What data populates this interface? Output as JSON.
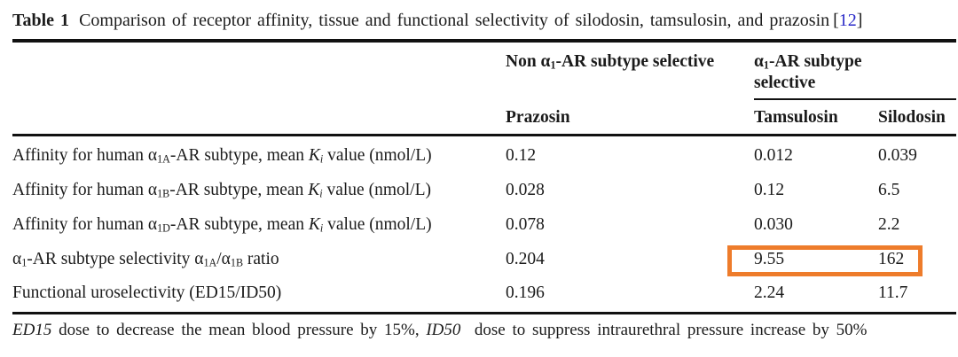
{
  "colors": {
    "text": "#1b1b1b",
    "citation_blue": "#2a2ac8",
    "highlight_orange": "#ee7c2b"
  },
  "caption": {
    "table_label": "Table 1",
    "text": "Comparison of receptor affinity, tissue and functional selectivity of silodosin, tamsulosin, and prazosin",
    "citation_open": "[",
    "citation_number": "12",
    "citation_close": "]"
  },
  "header": {
    "group_non_selective": [
      {
        "t": "Non α"
      },
      {
        "t": "1",
        "sub": true
      },
      {
        "t": "-AR subtype selective"
      }
    ],
    "group_selective_line1": [
      {
        "t": "α"
      },
      {
        "t": "1",
        "sub": true
      },
      {
        "t": "-AR subtype"
      }
    ],
    "group_selective_line2": [
      {
        "t": "selective"
      }
    ],
    "col_prazosin": "Prazosin",
    "col_tamsulosin": "Tamsulosin",
    "col_silodosin": "Silodosin"
  },
  "rows": [
    {
      "label": [
        {
          "t": "Affinity for human α"
        },
        {
          "t": "1A",
          "sub": true
        },
        {
          "t": "-AR subtype, mean "
        },
        {
          "t": "K",
          "i": true
        },
        {
          "t": "i",
          "sub": true,
          "i": true
        },
        {
          "t": " value (nmol/L)"
        }
      ],
      "prazosin": "0.12",
      "tamsulosin": "0.012",
      "silodosin": "0.039"
    },
    {
      "label": [
        {
          "t": "Affinity for human α"
        },
        {
          "t": "1B",
          "sub": true
        },
        {
          "t": "-AR subtype, mean "
        },
        {
          "t": "K",
          "i": true
        },
        {
          "t": "i",
          "sub": true,
          "i": true
        },
        {
          "t": " value (nmol/L)"
        }
      ],
      "prazosin": "0.028",
      "tamsulosin": "0.12",
      "silodosin": "6.5"
    },
    {
      "label": [
        {
          "t": "Affinity for human α"
        },
        {
          "t": "1D",
          "sub": true
        },
        {
          "t": "-AR subtype, mean "
        },
        {
          "t": "K",
          "i": true
        },
        {
          "t": "i",
          "sub": true,
          "i": true
        },
        {
          "t": " value (nmol/L)"
        }
      ],
      "prazosin": "0.078",
      "tamsulosin": "0.030",
      "silodosin": "2.2"
    },
    {
      "label": [
        {
          "t": "α"
        },
        {
          "t": "1",
          "sub": true
        },
        {
          "t": "-AR subtype selectivity α"
        },
        {
          "t": "1A",
          "sub": true
        },
        {
          "t": "/α"
        },
        {
          "t": "1B",
          "sub": true
        },
        {
          "t": " ratio"
        }
      ],
      "prazosin": "0.204",
      "tamsulosin": "9.55",
      "silodosin": "162"
    },
    {
      "label": [
        {
          "t": "Functional uroselectivity (ED15/ID50)"
        }
      ],
      "prazosin": "0.196",
      "tamsulosin": "2.24",
      "silodosin": "11.7"
    }
  ],
  "highlight": {
    "highlighted_values": [
      "9.55",
      "162"
    ],
    "row": "α1-AR subtype selectivity α1A/α1B ratio",
    "columns": [
      "Tamsulosin",
      "Silodosin"
    ]
  },
  "footnote": [
    {
      "t": "ED15",
      "i": true
    },
    {
      "t": " dose to decrease the mean blood pressure by 15%, "
    },
    {
      "t": "ID50",
      "i": true
    },
    {
      "t": "  dose to suppress intraurethral pressure increase by 50%"
    }
  ]
}
